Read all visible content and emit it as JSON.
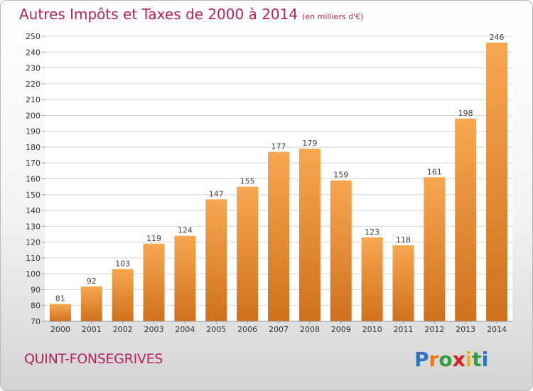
{
  "header": {
    "title": "Autres Impôts et Taxes de 2000 à 2014",
    "unit": "(en milliers d'€)"
  },
  "footer": {
    "city": "QUINT-FONSEGRIVES",
    "logo_letters": [
      "P",
      "r",
      "o",
      "x",
      "i",
      "t",
      "i"
    ],
    "logo_colors": [
      "#2e73c5",
      "#e77816",
      "#2e9e3f",
      "#d6211e",
      "#f0b800",
      "#2e9e3f",
      "#2e73c5"
    ]
  },
  "colors": {
    "title": "#b5245a",
    "bar_top": "#f7a750",
    "bar_bottom": "#cf711d",
    "grid": "#d6d6d6"
  },
  "chart_data": {
    "type": "bar",
    "title": "Autres Impôts et Taxes de 2000 à 2014",
    "subtitle": "(en milliers d'€)",
    "xlabel": "",
    "ylabel": "",
    "categories": [
      "2000",
      "2001",
      "2002",
      "2003",
      "2004",
      "2005",
      "2006",
      "2007",
      "2008",
      "2009",
      "2010",
      "2011",
      "2012",
      "2013",
      "2014"
    ],
    "values": [
      81,
      92,
      103,
      119,
      124,
      147,
      155,
      177,
      179,
      159,
      123,
      118,
      161,
      198,
      246
    ],
    "ylim": [
      70,
      250
    ],
    "ytick_step": 10,
    "grid": true
  }
}
